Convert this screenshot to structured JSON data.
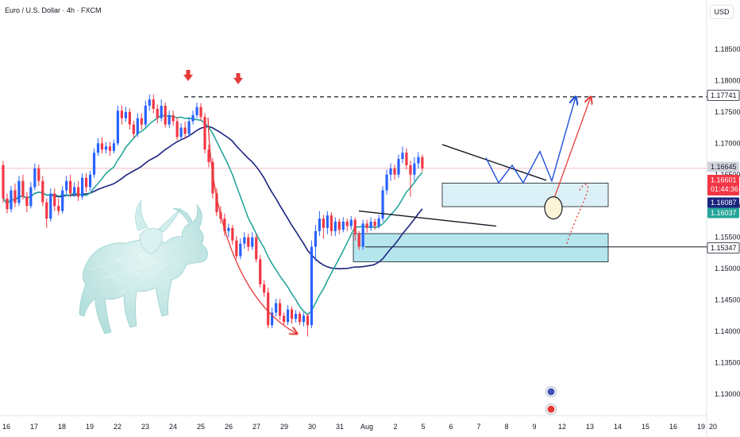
{
  "header": {
    "title": "Euro / U.S. Dollar · 4h · FXCM",
    "currency": "USD"
  },
  "chart_data": {
    "type": "candlestick",
    "title": "Euro / U.S. Dollar · 4h · FXCM",
    "y_ticks": [
      "1.18500",
      "1.18000",
      "1.17500",
      "1.17000",
      "1.16500",
      "1.16000",
      "1.15500",
      "1.15000",
      "1.14500",
      "1.14000",
      "1.13500",
      "1.13000"
    ],
    "x_ticks": [
      "16",
      "17",
      "18",
      "19",
      "22",
      "23",
      "24",
      "25",
      "26",
      "27",
      "29",
      "30",
      "31",
      "Aug",
      "2",
      "5",
      "6",
      "7",
      "8",
      "9",
      "12",
      "13",
      "14",
      "15",
      "16",
      "19",
      "20"
    ],
    "ylim": [
      1.1265,
      1.1895
    ],
    "price_tags": [
      {
        "value": "1.17741",
        "style": "black-outline"
      },
      {
        "value": "1.16645",
        "style": "grey"
      },
      {
        "value": "1.16601",
        "sub": "01:44:36",
        "style": "red"
      },
      {
        "value": "1.16087",
        "style": "navy"
      },
      {
        "value": "1.16037",
        "style": "teal"
      },
      {
        "value": "1.15347",
        "style": "black-outline"
      }
    ],
    "levels": {
      "resistance_dashed": 1.17741,
      "current_price": 1.16601,
      "support_line": 1.15347,
      "upper_zone": [
        1.1599,
        1.16365
      ],
      "lower_zone": [
        1.1511,
        1.1556
      ]
    },
    "series": [
      {
        "key": "ma_slow",
        "color": "#1a237e"
      },
      {
        "key": "ma_fast",
        "color": "#26a69a"
      }
    ],
    "colors": {
      "up": "#2962ff",
      "down": "#f23645",
      "upper_zone": "#dbf1f7",
      "lower_zone": "#b5e6ee"
    }
  }
}
